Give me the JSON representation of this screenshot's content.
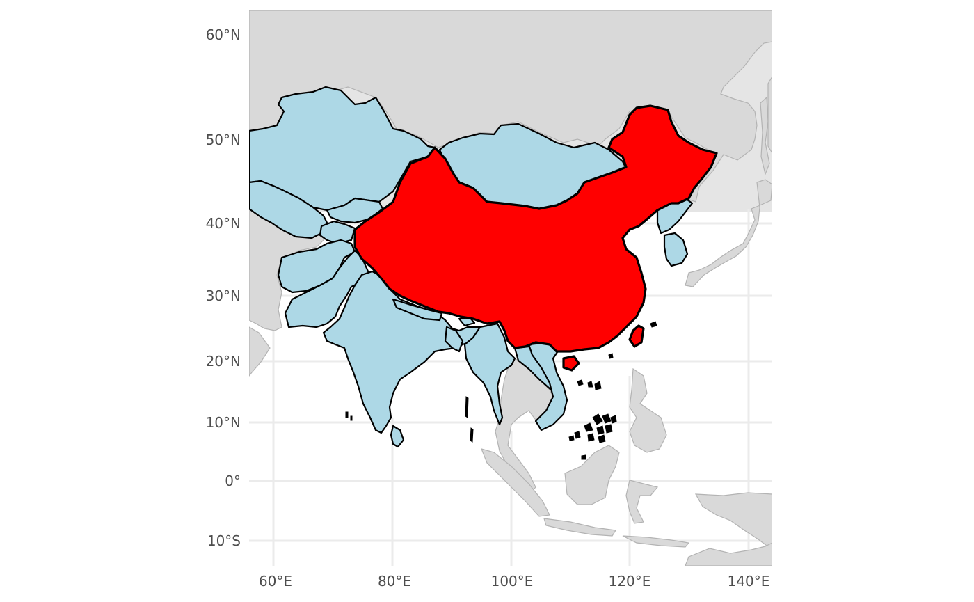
{
  "map": {
    "highlight_country": "China",
    "colors": {
      "highlight": "#ff0000",
      "neighbors": "#add8e6",
      "other_land": "#d9d9d9",
      "sea_background": "#e5e5e5",
      "gridline": "#ebebeb",
      "border": "#000000"
    },
    "x_axis_labels": [
      "60°E",
      "80°E",
      "100°E",
      "120°E",
      "140°E"
    ],
    "y_axis_labels": [
      "60°N",
      "50°N",
      "40°N",
      "30°N",
      "20°N",
      "10°N",
      "0°",
      "10°S"
    ]
  }
}
